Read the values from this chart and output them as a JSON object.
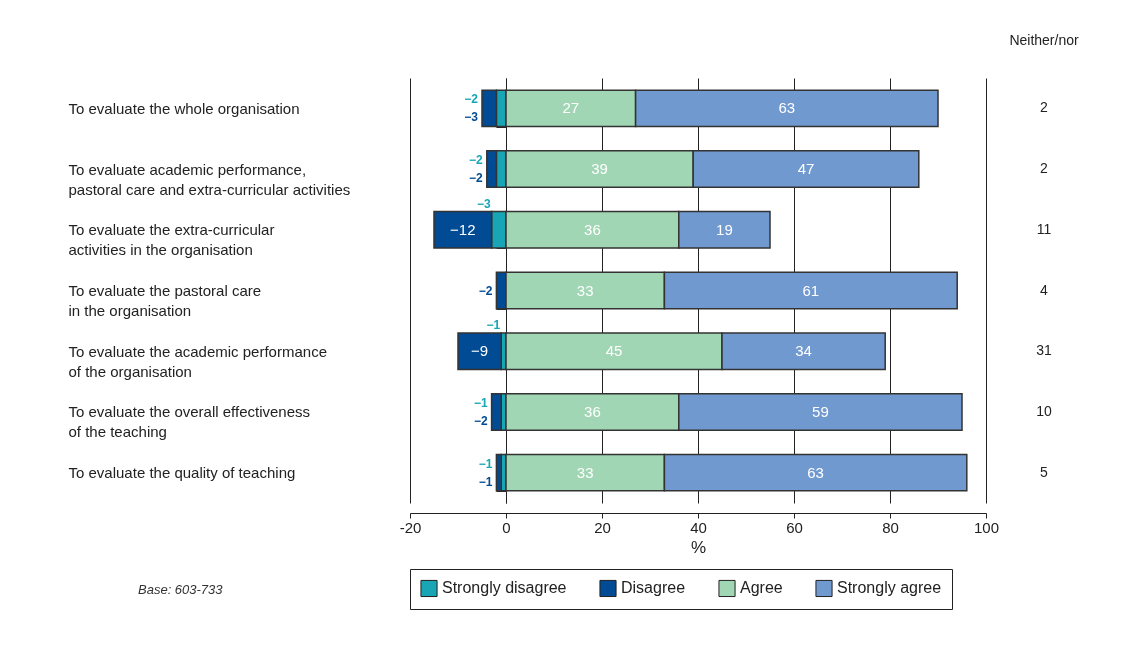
{
  "chart_data": {
    "type": "bar",
    "orientation": "horizontal",
    "stacked": true,
    "xlabel": "%",
    "xlim": [
      -20,
      100
    ],
    "xticks": [
      -20,
      0,
      20,
      40,
      60,
      80,
      100
    ],
    "grid": "x",
    "legend": "bottom",
    "data_labels": true,
    "categories": [
      "To evaluate the whole organisation",
      "To evaluate academic performance,\npastoral care and extra-curricular activities",
      "To evaluate the extra-curricular\nactivities in the organisation",
      "To evaluate the pastoral care\nin the organisation",
      "To evaluate the academic performance\nof the organisation",
      "To evaluate the overall effectiveness\nof the teaching",
      "To evaluate the quality of teaching"
    ],
    "series": [
      {
        "name": "Strongly disagree",
        "color": "#18a5b5",
        "values": [
          -2,
          -2,
          -3,
          null,
          -1,
          -1,
          -1
        ]
      },
      {
        "name": "Disagree",
        "color": "#004b93",
        "values": [
          -3,
          -2,
          -12,
          -2,
          -9,
          -2,
          -1
        ]
      },
      {
        "name": "Agree",
        "color": "#a0d6b4",
        "values": [
          27,
          39,
          36,
          33,
          45,
          36,
          33
        ]
      },
      {
        "name": "Strongly agree",
        "color": "#7099d0",
        "values": [
          63,
          47,
          19,
          61,
          34,
          59,
          63
        ]
      }
    ],
    "annotations": [
      "Neither/nor",
      "Base: 603-733",
      "2",
      "2",
      "11",
      "4",
      "31",
      "10",
      "5"
    ]
  }
}
